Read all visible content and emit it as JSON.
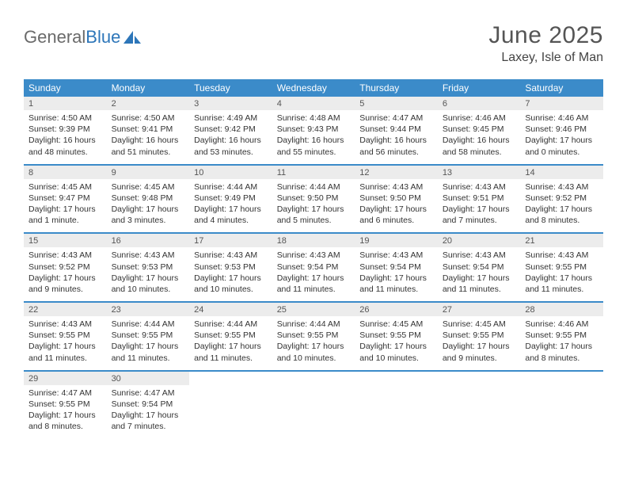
{
  "brand": {
    "part1": "General",
    "part2": "Blue"
  },
  "title": {
    "month": "June 2025",
    "location": "Laxey, Isle of Man"
  },
  "styling": {
    "header_bg": "#3b8bc9",
    "header_text": "#ffffff",
    "daynum_bg": "#ececec",
    "daynum_text": "#555555",
    "body_bg": "#ffffff",
    "body_text": "#333333",
    "rule_color": "#3b8bc9",
    "month_fontsize": 30,
    "location_fontsize": 16,
    "dow_fontsize": 12,
    "cell_fontsize": 10.5
  },
  "dow": [
    "Sunday",
    "Monday",
    "Tuesday",
    "Wednesday",
    "Thursday",
    "Friday",
    "Saturday"
  ],
  "weeks": [
    [
      {
        "n": "1",
        "sr": "4:50 AM",
        "ss": "9:39 PM",
        "dl": "16 hours and 48 minutes."
      },
      {
        "n": "2",
        "sr": "4:50 AM",
        "ss": "9:41 PM",
        "dl": "16 hours and 51 minutes."
      },
      {
        "n": "3",
        "sr": "4:49 AM",
        "ss": "9:42 PM",
        "dl": "16 hours and 53 minutes."
      },
      {
        "n": "4",
        "sr": "4:48 AM",
        "ss": "9:43 PM",
        "dl": "16 hours and 55 minutes."
      },
      {
        "n": "5",
        "sr": "4:47 AM",
        "ss": "9:44 PM",
        "dl": "16 hours and 56 minutes."
      },
      {
        "n": "6",
        "sr": "4:46 AM",
        "ss": "9:45 PM",
        "dl": "16 hours and 58 minutes."
      },
      {
        "n": "7",
        "sr": "4:46 AM",
        "ss": "9:46 PM",
        "dl": "17 hours and 0 minutes."
      }
    ],
    [
      {
        "n": "8",
        "sr": "4:45 AM",
        "ss": "9:47 PM",
        "dl": "17 hours and 1 minute."
      },
      {
        "n": "9",
        "sr": "4:45 AM",
        "ss": "9:48 PM",
        "dl": "17 hours and 3 minutes."
      },
      {
        "n": "10",
        "sr": "4:44 AM",
        "ss": "9:49 PM",
        "dl": "17 hours and 4 minutes."
      },
      {
        "n": "11",
        "sr": "4:44 AM",
        "ss": "9:50 PM",
        "dl": "17 hours and 5 minutes."
      },
      {
        "n": "12",
        "sr": "4:43 AM",
        "ss": "9:50 PM",
        "dl": "17 hours and 6 minutes."
      },
      {
        "n": "13",
        "sr": "4:43 AM",
        "ss": "9:51 PM",
        "dl": "17 hours and 7 minutes."
      },
      {
        "n": "14",
        "sr": "4:43 AM",
        "ss": "9:52 PM",
        "dl": "17 hours and 8 minutes."
      }
    ],
    [
      {
        "n": "15",
        "sr": "4:43 AM",
        "ss": "9:52 PM",
        "dl": "17 hours and 9 minutes."
      },
      {
        "n": "16",
        "sr": "4:43 AM",
        "ss": "9:53 PM",
        "dl": "17 hours and 10 minutes."
      },
      {
        "n": "17",
        "sr": "4:43 AM",
        "ss": "9:53 PM",
        "dl": "17 hours and 10 minutes."
      },
      {
        "n": "18",
        "sr": "4:43 AM",
        "ss": "9:54 PM",
        "dl": "17 hours and 11 minutes."
      },
      {
        "n": "19",
        "sr": "4:43 AM",
        "ss": "9:54 PM",
        "dl": "17 hours and 11 minutes."
      },
      {
        "n": "20",
        "sr": "4:43 AM",
        "ss": "9:54 PM",
        "dl": "17 hours and 11 minutes."
      },
      {
        "n": "21",
        "sr": "4:43 AM",
        "ss": "9:55 PM",
        "dl": "17 hours and 11 minutes."
      }
    ],
    [
      {
        "n": "22",
        "sr": "4:43 AM",
        "ss": "9:55 PM",
        "dl": "17 hours and 11 minutes."
      },
      {
        "n": "23",
        "sr": "4:44 AM",
        "ss": "9:55 PM",
        "dl": "17 hours and 11 minutes."
      },
      {
        "n": "24",
        "sr": "4:44 AM",
        "ss": "9:55 PM",
        "dl": "17 hours and 11 minutes."
      },
      {
        "n": "25",
        "sr": "4:44 AM",
        "ss": "9:55 PM",
        "dl": "17 hours and 10 minutes."
      },
      {
        "n": "26",
        "sr": "4:45 AM",
        "ss": "9:55 PM",
        "dl": "17 hours and 10 minutes."
      },
      {
        "n": "27",
        "sr": "4:45 AM",
        "ss": "9:55 PM",
        "dl": "17 hours and 9 minutes."
      },
      {
        "n": "28",
        "sr": "4:46 AM",
        "ss": "9:55 PM",
        "dl": "17 hours and 8 minutes."
      }
    ],
    [
      {
        "n": "29",
        "sr": "4:47 AM",
        "ss": "9:55 PM",
        "dl": "17 hours and 8 minutes."
      },
      {
        "n": "30",
        "sr": "4:47 AM",
        "ss": "9:54 PM",
        "dl": "17 hours and 7 minutes."
      },
      null,
      null,
      null,
      null,
      null
    ]
  ],
  "labels": {
    "sunrise": "Sunrise: ",
    "sunset": "Sunset: ",
    "daylight": "Daylight: "
  }
}
